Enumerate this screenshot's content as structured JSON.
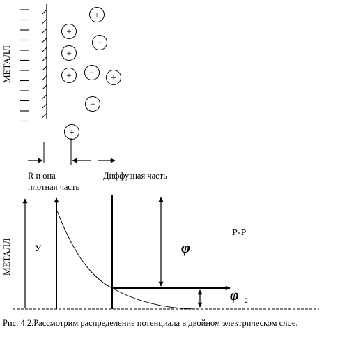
{
  "top_metal_label": "МЕТАЛЛ",
  "bottom_metal_label": "МЕТАЛЛ",
  "ions": [
    {
      "sign": "+"
    },
    {
      "sign": "+"
    },
    {
      "sign": "−"
    },
    {
      "sign": "+"
    },
    {
      "sign": "+"
    },
    {
      "sign": "−"
    },
    {
      "sign": "+"
    },
    {
      "sign": "−"
    },
    {
      "sign": "+"
    }
  ],
  "label_dense": [
    "R и она",
    "плотная часть"
  ],
  "label_diffuse": "Диффузная часть",
  "label_y": "У",
  "label_pp": "Р-Р",
  "label_phi1": "φ",
  "label_phi1_sub": "1",
  "label_phi2": "φ",
  "label_phi2_sub": "2",
  "caption": "Рис. 4.2.Рассмотрим распределение потенциала в двойном электрическом слое."
}
